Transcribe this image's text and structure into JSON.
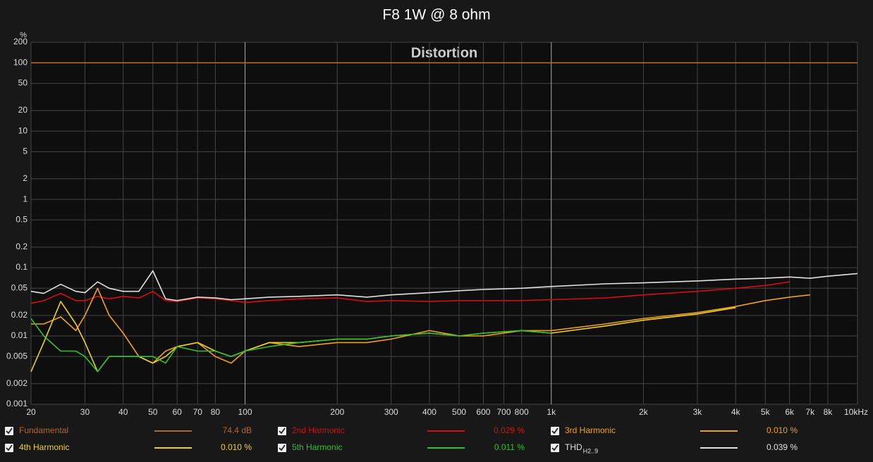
{
  "chart_data": {
    "type": "line",
    "title": "F8 1W @ 8 ohm",
    "subtitle": "Distortion",
    "y_unit": "%",
    "log_x": true,
    "log_y": true,
    "grid": true,
    "xlim": [
      20,
      10000
    ],
    "ylim": [
      0.001,
      200
    ],
    "xticks": [
      20,
      30,
      40,
      50,
      60,
      70,
      80,
      100,
      200,
      300,
      400,
      500,
      600,
      700,
      800,
      {
        "value": 1000,
        "label": "1k"
      },
      {
        "value": 2000,
        "label": "2k"
      },
      {
        "value": 3000,
        "label": "3k"
      },
      {
        "value": 4000,
        "label": "4k"
      },
      {
        "value": 5000,
        "label": "5k"
      },
      {
        "value": 6000,
        "label": "6k"
      },
      {
        "value": 7000,
        "label": "7k"
      },
      {
        "value": 8000,
        "label": "8k"
      },
      {
        "value": 10000,
        "label": "10kHz"
      }
    ],
    "yticks": [
      0.001,
      0.002,
      0.005,
      0.01,
      0.02,
      0.05,
      0.1,
      0.2,
      0.5,
      1,
      2,
      5,
      10,
      20,
      50,
      100,
      200
    ],
    "x": [
      20,
      22,
      25,
      28,
      30,
      33,
      36,
      40,
      45,
      50,
      55,
      60,
      70,
      80,
      90,
      100,
      120,
      150,
      200,
      250,
      300,
      400,
      500,
      600,
      800,
      1000,
      1500,
      2000,
      3000,
      4000,
      5000,
      6000,
      7000,
      8000,
      10000
    ],
    "series": [
      {
        "name": "Fundamental",
        "color": "#b5652a",
        "legend_value": "74.4 dB",
        "values": [
          100,
          100,
          100,
          100,
          100,
          100,
          100,
          100,
          100,
          100,
          100,
          100,
          100,
          100,
          100,
          100,
          100,
          100,
          100,
          100,
          100,
          100,
          100,
          100,
          100,
          100,
          100,
          100,
          100,
          100,
          100,
          100,
          100,
          100,
          100
        ]
      },
      {
        "name": "2nd Harmonic",
        "color": "#d01010",
        "legend_value": "0.029 %",
        "values": [
          0.03,
          0.033,
          0.042,
          0.033,
          0.033,
          0.038,
          0.035,
          0.038,
          0.036,
          0.045,
          0.033,
          0.032,
          0.036,
          0.035,
          0.033,
          0.031,
          0.033,
          0.035,
          0.036,
          0.032,
          0.033,
          0.032,
          0.033,
          0.033,
          0.033,
          0.034,
          0.036,
          0.04,
          0.045,
          0.05,
          0.055,
          0.062,
          null,
          null,
          null
        ]
      },
      {
        "name": "3rd Harmonic",
        "color": "#f0a020",
        "legend_value": "0.010 %",
        "values": [
          0.015,
          0.015,
          0.019,
          0.012,
          0.02,
          0.05,
          0.02,
          0.011,
          0.005,
          0.004,
          0.006,
          0.007,
          0.008,
          0.005,
          0.004,
          0.006,
          0.008,
          0.007,
          0.008,
          0.008,
          0.009,
          0.012,
          0.01,
          0.01,
          0.012,
          0.012,
          0.015,
          0.018,
          0.022,
          0.027,
          0.033,
          0.037,
          0.04,
          null,
          null
        ]
      },
      {
        "name": "4th Harmonic",
        "color": "#f0d020",
        "legend_value": "0.010 %",
        "values": [
          0.003,
          0.008,
          0.032,
          0.015,
          0.008,
          0.003,
          0.005,
          0.005,
          0.005,
          0.004,
          0.005,
          0.007,
          0.008,
          0.006,
          0.005,
          0.006,
          0.008,
          0.008,
          0.009,
          0.009,
          0.01,
          0.011,
          0.01,
          0.011,
          0.012,
          0.011,
          0.014,
          0.017,
          0.021,
          0.026,
          null,
          null,
          null,
          null,
          null
        ]
      },
      {
        "name": "5th Harmonic",
        "color": "#30c030",
        "legend_value": "0.011 %",
        "values": [
          0.018,
          0.01,
          0.006,
          0.006,
          0.005,
          0.003,
          0.005,
          0.005,
          0.005,
          0.005,
          0.004,
          0.007,
          0.006,
          0.006,
          0.005,
          0.006,
          0.007,
          0.008,
          0.009,
          0.009,
          0.01,
          0.011,
          0.01,
          0.011,
          0.012,
          0.011,
          null,
          null,
          null,
          null,
          null,
          null,
          null,
          null,
          null
        ]
      },
      {
        "name": "THD",
        "name_sub": "H2..9",
        "color": "#e0e0e0",
        "legend_value": "0.039 %",
        "values": [
          0.045,
          0.042,
          0.057,
          0.045,
          0.043,
          0.062,
          0.05,
          0.045,
          0.045,
          0.09,
          0.035,
          0.033,
          0.037,
          0.036,
          0.034,
          0.035,
          0.037,
          0.038,
          0.04,
          0.037,
          0.04,
          0.043,
          0.046,
          0.048,
          0.05,
          0.053,
          0.058,
          0.06,
          0.064,
          0.068,
          0.07,
          0.073,
          0.07,
          0.075,
          0.082
        ]
      }
    ]
  }
}
